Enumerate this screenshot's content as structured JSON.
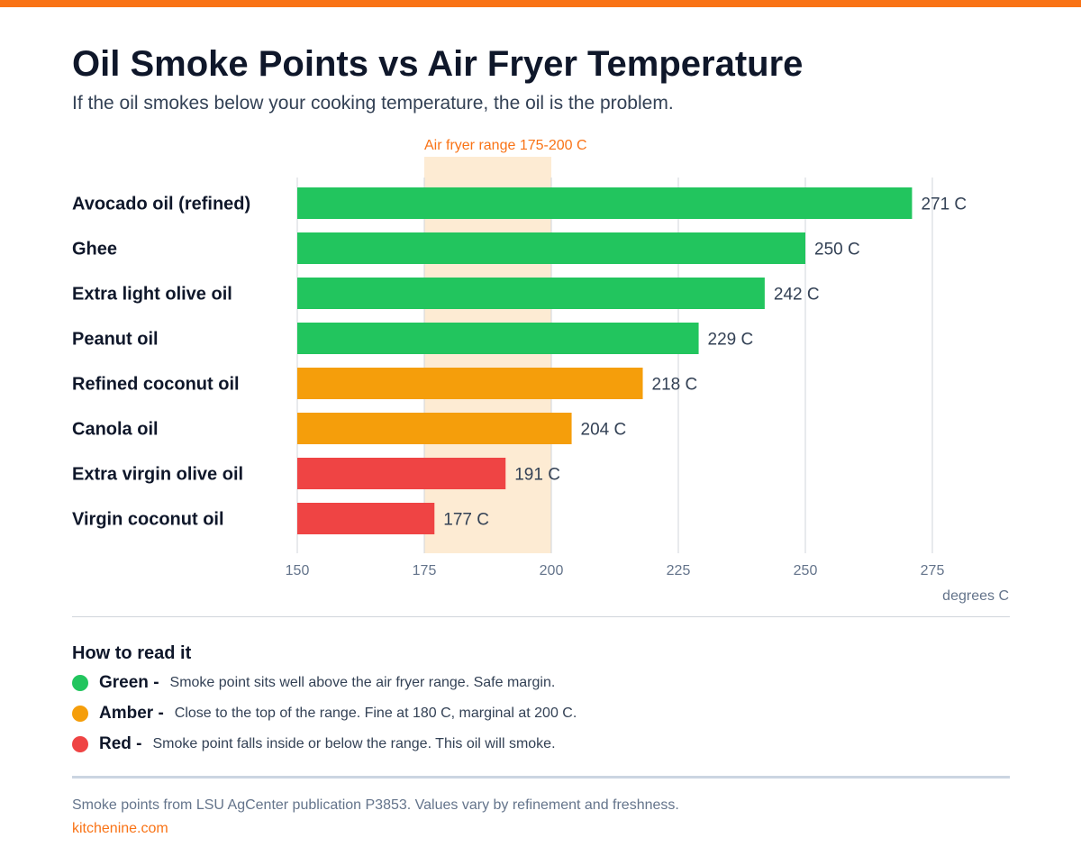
{
  "header": {
    "title": "Oil Smoke Points vs Air Fryer Temperature",
    "subtitle": "If the oil smokes below your cooking temperature, the oil is the problem."
  },
  "colors": {
    "accent": "#f97316",
    "green": "#22c55e",
    "amber": "#f59e0b",
    "red": "#ef4444",
    "band": "#fdebd3"
  },
  "chart_data": {
    "type": "bar",
    "orientation": "horizontal",
    "categories": [
      "Avocado oil (refined)",
      "Ghee",
      "Extra light olive oil",
      "Peanut oil",
      "Refined coconut oil",
      "Canola oil",
      "Extra virgin olive oil",
      "Virgin coconut oil"
    ],
    "values": [
      271,
      250,
      242,
      229,
      218,
      204,
      191,
      177
    ],
    "value_labels": [
      "271 C",
      "250 C",
      "242 C",
      "229 C",
      "218 C",
      "204 C",
      "191 C",
      "177 C"
    ],
    "bar_colors": [
      "#22c55e",
      "#22c55e",
      "#22c55e",
      "#22c55e",
      "#f59e0b",
      "#f59e0b",
      "#ef4444",
      "#ef4444"
    ],
    "xlim": [
      150,
      290
    ],
    "xticks": [
      150,
      175,
      200,
      225,
      250,
      275
    ],
    "xlabel": "degrees C",
    "grid": true,
    "highlight_band": {
      "from": 175,
      "to": 200,
      "label": "Air fryer range 175-200 C"
    }
  },
  "legend": {
    "title": "How to read it",
    "items": [
      {
        "name": "Green -",
        "description": "Smoke point sits well above the air fryer range. Safe margin.",
        "color": "#22c55e"
      },
      {
        "name": "Amber -",
        "description": "Close to the top of the range. Fine at 180 C, marginal at 200 C.",
        "color": "#f59e0b"
      },
      {
        "name": "Red -",
        "description": "Smoke point falls inside or below the range. This oil will smoke.",
        "color": "#ef4444"
      }
    ]
  },
  "footer": {
    "source": "Smoke points from LSU AgCenter publication P3853. Values vary by refinement and freshness.",
    "site": "kitchenine.com"
  }
}
